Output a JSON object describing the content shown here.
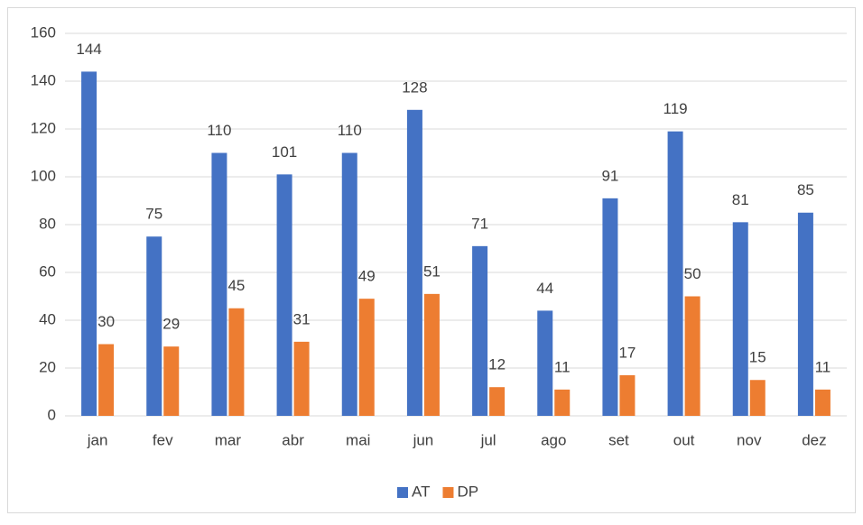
{
  "chart_data": {
    "type": "bar",
    "categories": [
      "jan",
      "fev",
      "mar",
      "abr",
      "mai",
      "jun",
      "jul",
      "ago",
      "set",
      "out",
      "nov",
      "dez"
    ],
    "series": [
      {
        "name": "AT",
        "color": "#4472c4",
        "values": [
          144,
          75,
          110,
          101,
          110,
          128,
          71,
          44,
          91,
          119,
          81,
          85
        ]
      },
      {
        "name": "DP",
        "color": "#ed7d31",
        "values": [
          30,
          29,
          45,
          31,
          49,
          51,
          12,
          11,
          17,
          50,
          15,
          11
        ]
      }
    ],
    "ylim": [
      0,
      160
    ],
    "yticks": [
      0,
      20,
      40,
      60,
      80,
      100,
      120,
      140,
      160
    ],
    "grid": true,
    "legend": "bottom"
  }
}
